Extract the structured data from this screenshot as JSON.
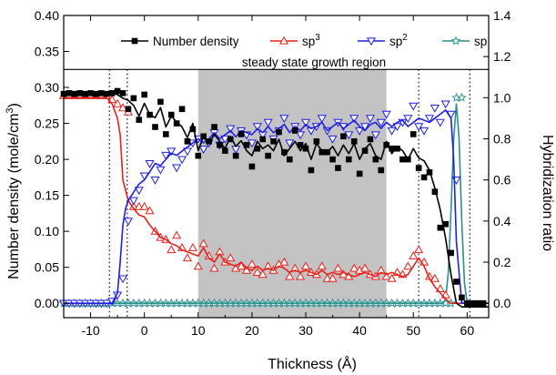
{
  "chart_data": {
    "type": "line",
    "xlabel": "Thickness (Å)",
    "ylabel_left": "Number density (mole/cm",
    "ylabel_left_sup": "3",
    "ylabel_left_close": ")",
    "ylabel_right": "Hybridization ratio",
    "xlim": [
      -15,
      64
    ],
    "xticks": [
      -10,
      0,
      10,
      20,
      30,
      40,
      50,
      60
    ],
    "ylim_left": [
      -0.02,
      0.4
    ],
    "yticks_left": [
      0.0,
      0.05,
      0.1,
      0.15,
      0.2,
      0.25,
      0.3,
      0.35,
      0.4
    ],
    "ylim_right": [
      -0.07,
      1.4
    ],
    "yticks_right": [
      0.0,
      0.2,
      0.4,
      0.6,
      0.8,
      1.0,
      1.2,
      1.4
    ],
    "legend_placement": "top",
    "region_label": "steady state growth region",
    "shaded_region": [
      10,
      45
    ],
    "vertical_markers": [
      -6.5,
      -3.2,
      51,
      60.5
    ],
    "legend_divider_y_left": 0.325,
    "series": [
      {
        "name": "Number density",
        "name_sup": "",
        "axis": "left",
        "color": "#000000",
        "marker": "square",
        "points_x": [
          -15,
          -14,
          -13,
          -12,
          -11,
          -10,
          -9,
          -8,
          -7,
          -6,
          -5,
          -4,
          -3,
          -2,
          -1,
          0,
          1,
          2,
          3,
          4,
          5,
          6,
          7,
          8,
          9,
          10,
          11,
          12,
          13,
          14,
          15,
          16,
          17,
          18,
          19,
          20,
          21,
          22,
          23,
          24,
          25,
          26,
          27,
          28,
          29,
          30,
          31,
          32,
          33,
          34,
          35,
          36,
          37,
          38,
          39,
          40,
          41,
          42,
          43,
          44,
          45,
          46,
          47,
          48,
          49,
          50,
          51,
          52,
          53,
          54,
          55,
          56,
          57,
          58,
          59,
          60,
          61,
          62,
          63
        ],
        "points_y": [
          0.291,
          0.292,
          0.291,
          0.292,
          0.291,
          0.292,
          0.291,
          0.292,
          0.291,
          0.292,
          0.295,
          0.292,
          0.27,
          0.285,
          0.255,
          0.29,
          0.262,
          0.245,
          0.28,
          0.235,
          0.262,
          0.25,
          0.27,
          0.225,
          0.242,
          0.205,
          0.232,
          0.225,
          0.245,
          0.22,
          0.212,
          0.228,
          0.205,
          0.235,
          0.22,
          0.19,
          0.215,
          0.228,
          0.205,
          0.225,
          0.238,
          0.21,
          0.2,
          0.24,
          0.22,
          0.215,
          0.185,
          0.225,
          0.21,
          0.21,
          0.2,
          0.188,
          0.232,
          0.2,
          0.225,
          0.18,
          0.212,
          0.228,
          0.2,
          0.185,
          0.22,
          0.215,
          0.215,
          0.2,
          0.2,
          0.235,
          0.188,
          0.175,
          0.182,
          0.155,
          0.105,
          0.11,
          0.07,
          0.03,
          0.008,
          0.0,
          0.0,
          0.0,
          0.0
        ],
        "line_x": [
          -15,
          -10,
          -7,
          -6,
          -5,
          -4,
          -3,
          -2,
          -1,
          0,
          1,
          2,
          3,
          4,
          5,
          6,
          7,
          8,
          9,
          10,
          11,
          12,
          13,
          14,
          15,
          16,
          17,
          18,
          19,
          20,
          21,
          22,
          23,
          24,
          25,
          26,
          27,
          28,
          29,
          30,
          31,
          32,
          33,
          34,
          35,
          36,
          37,
          38,
          39,
          40,
          41,
          42,
          43,
          44,
          45,
          46,
          47,
          48,
          49,
          50,
          51,
          52,
          53,
          54,
          55,
          55.5,
          56,
          57,
          58,
          59,
          60,
          64
        ],
        "line_y": [
          0.293,
          0.293,
          0.292,
          0.293,
          0.29,
          0.285,
          0.282,
          0.275,
          0.26,
          0.278,
          0.262,
          0.258,
          0.272,
          0.245,
          0.26,
          0.252,
          0.245,
          0.23,
          0.25,
          0.212,
          0.232,
          0.222,
          0.235,
          0.225,
          0.215,
          0.232,
          0.218,
          0.226,
          0.212,
          0.205,
          0.225,
          0.215,
          0.22,
          0.212,
          0.228,
          0.205,
          0.215,
          0.225,
          0.212,
          0.222,
          0.2,
          0.222,
          0.212,
          0.21,
          0.218,
          0.205,
          0.22,
          0.208,
          0.222,
          0.2,
          0.215,
          0.222,
          0.205,
          0.2,
          0.225,
          0.208,
          0.218,
          0.212,
          0.2,
          0.215,
          0.202,
          0.198,
          0.185,
          0.16,
          0.13,
          0.11,
          0.09,
          0.04,
          0.0,
          -0.005,
          -0.005,
          -0.005
        ]
      },
      {
        "name": "sp",
        "name_sup": "3",
        "axis": "right",
        "color": "#e8201a",
        "marker": "triangle-up",
        "points_x": [
          -15,
          -14,
          -13,
          -12,
          -11,
          -10,
          -9,
          -8,
          -7,
          -6,
          -5,
          -4,
          -3,
          -2,
          -1,
          0,
          1,
          2,
          3,
          4,
          5,
          6,
          7,
          8,
          9,
          10,
          11,
          12,
          13,
          14,
          15,
          16,
          17,
          18,
          19,
          20,
          21,
          22,
          23,
          24,
          25,
          26,
          27,
          28,
          29,
          30,
          31,
          32,
          33,
          34,
          35,
          36,
          37,
          38,
          39,
          40,
          41,
          42,
          43,
          44,
          45,
          46,
          47,
          48,
          49,
          50,
          51,
          52,
          53,
          54,
          55,
          56
        ],
        "points_y": [
          1.01,
          1.01,
          1.01,
          1.01,
          1.01,
          1.01,
          1.01,
          1.01,
          1.01,
          0.99,
          0.97,
          0.95,
          0.93,
          0.47,
          0.47,
          0.47,
          0.45,
          0.35,
          0.32,
          0.31,
          0.26,
          0.33,
          0.27,
          0.22,
          0.27,
          0.18,
          0.29,
          0.23,
          0.17,
          0.25,
          0.2,
          0.22,
          0.17,
          0.18,
          0.16,
          0.19,
          0.15,
          0.14,
          0.18,
          0.16,
          0.19,
          0.2,
          0.13,
          0.17,
          0.13,
          0.18,
          0.15,
          0.14,
          0.18,
          0.12,
          0.12,
          0.17,
          0.14,
          0.13,
          0.17,
          0.16,
          0.17,
          0.14,
          0.13,
          0.16,
          0.13,
          0.12,
          0.15,
          0.14,
          0.18,
          0.23,
          0.26,
          0.2,
          0.13,
          0.12,
          0.07,
          0.04
        ],
        "line_x": [
          -15,
          -7,
          -6,
          -5,
          -4.5,
          -4,
          -3.5,
          -3,
          -2,
          -1,
          0,
          1,
          2,
          3,
          4,
          5,
          6,
          7,
          8,
          9,
          10,
          11,
          12,
          13,
          14,
          15,
          16,
          17,
          18,
          19,
          20,
          21,
          22,
          23,
          24,
          25,
          26,
          27,
          28,
          29,
          30,
          31,
          32,
          33,
          34,
          35,
          36,
          37,
          38,
          39,
          40,
          41,
          42,
          43,
          44,
          45,
          46,
          47,
          48,
          49,
          50,
          51,
          52,
          53,
          54,
          55,
          56,
          57,
          58,
          59,
          60,
          64
        ],
        "line_y": [
          1.0,
          1.0,
          0.97,
          0.9,
          0.82,
          0.6,
          0.55,
          0.5,
          0.46,
          0.43,
          0.42,
          0.38,
          0.35,
          0.32,
          0.31,
          0.29,
          0.28,
          0.26,
          0.25,
          0.24,
          0.23,
          0.27,
          0.22,
          0.2,
          0.24,
          0.2,
          0.19,
          0.18,
          0.2,
          0.17,
          0.16,
          0.18,
          0.16,
          0.17,
          0.16,
          0.18,
          0.17,
          0.15,
          0.16,
          0.15,
          0.16,
          0.15,
          0.14,
          0.16,
          0.14,
          0.15,
          0.14,
          0.15,
          0.14,
          0.13,
          0.14,
          0.15,
          0.14,
          0.13,
          0.15,
          0.14,
          0.15,
          0.14,
          0.13,
          0.14,
          0.18,
          0.22,
          0.18,
          0.12,
          0.08,
          0.05,
          0.02,
          0.0,
          0.0,
          0.0,
          0.0,
          0.0
        ]
      },
      {
        "name": "sp",
        "name_sup": "2",
        "axis": "right",
        "color": "#1f1fe0",
        "marker": "triangle-down",
        "points_x": [
          -15,
          -14,
          -13,
          -12,
          -11,
          -10,
          -9,
          -8,
          -7,
          -6,
          -5,
          -4,
          -3,
          -2,
          -1,
          0,
          1,
          2,
          3,
          4,
          5,
          6,
          7,
          8,
          9,
          10,
          11,
          12,
          13,
          14,
          15,
          16,
          17,
          18,
          19,
          20,
          21,
          22,
          23,
          24,
          25,
          26,
          27,
          28,
          29,
          30,
          31,
          32,
          33,
          34,
          35,
          36,
          37,
          38,
          39,
          40,
          41,
          42,
          43,
          44,
          45,
          46,
          47,
          48,
          49,
          50,
          51,
          52,
          53,
          54,
          55,
          56,
          57,
          58
        ],
        "points_y": [
          0.0,
          0.0,
          0.0,
          0.0,
          0.0,
          0.0,
          0.0,
          0.0,
          0.0,
          0.01,
          0.04,
          0.12,
          0.4,
          0.5,
          0.55,
          0.62,
          0.68,
          0.6,
          0.65,
          0.72,
          0.74,
          0.66,
          0.7,
          0.74,
          0.78,
          0.8,
          0.75,
          0.78,
          0.83,
          0.77,
          0.8,
          0.85,
          0.75,
          0.84,
          0.82,
          0.78,
          0.86,
          0.82,
          0.88,
          0.8,
          0.84,
          0.9,
          0.78,
          0.86,
          0.82,
          0.88,
          0.84,
          0.86,
          0.9,
          0.84,
          0.8,
          0.88,
          0.86,
          0.82,
          0.9,
          0.84,
          0.86,
          0.9,
          0.82,
          0.88,
          0.92,
          0.84,
          0.86,
          0.88,
          0.9,
          0.96,
          0.86,
          0.84,
          0.9,
          0.95,
          0.88,
          0.97,
          0.92,
          0.6
        ],
        "line_x": [
          -15,
          -6,
          -5,
          -4.5,
          -4,
          -3.5,
          -3,
          -2,
          -1,
          0,
          1,
          2,
          3,
          4,
          5,
          6,
          7,
          8,
          9,
          10,
          11,
          12,
          13,
          14,
          15,
          16,
          17,
          18,
          19,
          20,
          21,
          22,
          23,
          24,
          25,
          26,
          27,
          28,
          29,
          30,
          31,
          32,
          33,
          34,
          35,
          36,
          37,
          38,
          39,
          40,
          41,
          42,
          43,
          44,
          45,
          46,
          47,
          48,
          49,
          50,
          51,
          52,
          53,
          54,
          55,
          56,
          57,
          57.5,
          58,
          59,
          60,
          64
        ],
        "line_y": [
          0.0,
          0.0,
          0.05,
          0.2,
          0.38,
          0.46,
          0.5,
          0.54,
          0.58,
          0.6,
          0.64,
          0.68,
          0.67,
          0.7,
          0.73,
          0.72,
          0.74,
          0.76,
          0.78,
          0.8,
          0.78,
          0.8,
          0.83,
          0.8,
          0.82,
          0.84,
          0.81,
          0.84,
          0.83,
          0.82,
          0.85,
          0.83,
          0.86,
          0.83,
          0.85,
          0.87,
          0.83,
          0.86,
          0.84,
          0.87,
          0.85,
          0.86,
          0.88,
          0.84,
          0.86,
          0.88,
          0.85,
          0.87,
          0.89,
          0.86,
          0.84,
          0.87,
          0.88,
          0.85,
          0.88,
          0.86,
          0.88,
          0.89,
          0.86,
          0.88,
          0.9,
          0.89,
          0.88,
          0.9,
          0.92,
          0.94,
          0.9,
          0.7,
          0.3,
          0.0,
          0.0,
          0.0
        ]
      },
      {
        "name": "sp",
        "name_sup": "",
        "axis": "right",
        "color": "#2a8f8f",
        "marker": "star",
        "points_x": [
          -15,
          -14,
          -13,
          -12,
          -11,
          -10,
          -9,
          -8,
          -7,
          -6,
          -5,
          -4,
          -3,
          -2,
          -1,
          0,
          1,
          2,
          3,
          4,
          5,
          6,
          7,
          8,
          9,
          10,
          11,
          12,
          13,
          14,
          15,
          16,
          17,
          18,
          19,
          20,
          21,
          22,
          23,
          24,
          25,
          26,
          27,
          28,
          29,
          30,
          31,
          32,
          33,
          34,
          35,
          36,
          37,
          38,
          39,
          40,
          41,
          42,
          43,
          44,
          45,
          46,
          47,
          48,
          49,
          50,
          51,
          52,
          53,
          54,
          55,
          56,
          57,
          58,
          59,
          60
        ],
        "points_y": [
          0.0,
          0.0,
          0.0,
          0.0,
          0.0,
          0.0,
          0.0,
          0.0,
          0.0,
          0.0,
          0.0,
          0.0,
          0.0,
          0.0,
          0.0,
          0.0,
          0.0,
          0.0,
          0.0,
          0.0,
          0.0,
          0.0,
          0.0,
          0.0,
          0.0,
          0.0,
          0.0,
          0.0,
          0.0,
          0.0,
          0.0,
          0.0,
          0.0,
          0.0,
          0.0,
          0.0,
          0.0,
          0.0,
          0.0,
          0.0,
          0.0,
          0.0,
          0.0,
          0.0,
          0.0,
          0.0,
          0.0,
          0.0,
          0.0,
          0.0,
          0.0,
          0.0,
          0.0,
          0.0,
          0.0,
          0.0,
          0.0,
          0.0,
          0.0,
          0.0,
          0.0,
          0.0,
          0.0,
          0.0,
          0.0,
          0.0,
          0.0,
          0.0,
          0.0,
          0.0,
          0.0,
          0.0,
          0.0,
          1.0,
          1.0,
          0.0
        ],
        "line_x": [
          -15,
          55.5,
          56,
          56.5,
          57,
          57.5,
          58,
          58.5,
          59,
          59.5,
          60,
          64
        ],
        "line_y": [
          0.0,
          0.0,
          0.02,
          0.15,
          0.45,
          0.8,
          0.97,
          0.8,
          0.4,
          0.1,
          0.0,
          0.0
        ]
      }
    ]
  }
}
